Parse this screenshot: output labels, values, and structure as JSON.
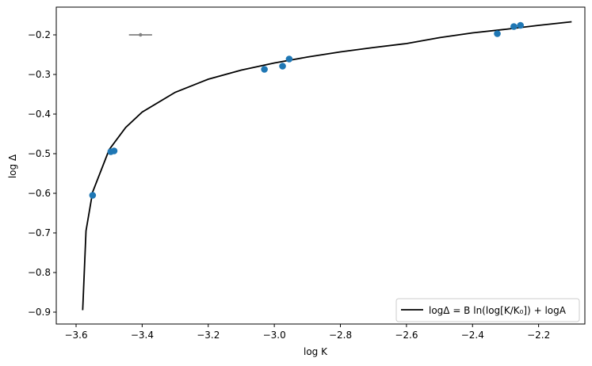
{
  "chart_data": {
    "type": "scatter",
    "xlabel": "log K",
    "ylabel": "log Δ",
    "xlim": [
      -3.66,
      -2.06
    ],
    "ylim": [
      -0.93,
      -0.13
    ],
    "xticks": [
      -3.6,
      -3.4,
      -3.2,
      -3.0,
      -2.8,
      -2.6,
      -2.4,
      -2.2
    ],
    "yticks": [
      -0.2,
      -0.3,
      -0.4,
      -0.5,
      -0.6,
      -0.7,
      -0.8,
      -0.9
    ],
    "xtick_labels": [
      "−3.6",
      "−3.4",
      "−3.2",
      "−3.0",
      "−2.8",
      "−2.6",
      "−2.4",
      "−2.2"
    ],
    "ytick_labels": [
      "−0.2",
      "−0.3",
      "−0.4",
      "−0.5",
      "−0.6",
      "−0.7",
      "−0.8",
      "−0.9"
    ],
    "grid": false,
    "legend_position": "lower-right",
    "colors": {
      "points": "#1f77b4",
      "fit": "#000000",
      "errorbar": "#808080"
    },
    "points": [
      {
        "x": -3.55,
        "y": -0.605
      },
      {
        "x": -3.495,
        "y": -0.495
      },
      {
        "x": -3.485,
        "y": -0.493
      },
      {
        "x": -3.03,
        "y": -0.287
      },
      {
        "x": -2.975,
        "y": -0.279
      },
      {
        "x": -2.955,
        "y": -0.261
      },
      {
        "x": -2.325,
        "y": -0.197
      },
      {
        "x": -2.275,
        "y": -0.179
      },
      {
        "x": -2.255,
        "y": -0.176
      }
    ],
    "errorbar_sample": {
      "x": -3.405,
      "y": -0.2,
      "xerr": 0.035
    },
    "fit": {
      "legend": "logΔ = B ln(log[K/K₀]) + logA",
      "x": [
        -3.58,
        -3.57,
        -3.55,
        -3.5,
        -3.45,
        -3.4,
        -3.3,
        -3.2,
        -3.1,
        -3.0,
        -2.9,
        -2.8,
        -2.7,
        -2.6,
        -2.5,
        -2.4,
        -2.3,
        -2.2,
        -2.1
      ],
      "y": [
        -0.895,
        -0.695,
        -0.597,
        -0.49,
        -0.434,
        -0.395,
        -0.345,
        -0.312,
        -0.289,
        -0.271,
        -0.256,
        -0.243,
        -0.232,
        -0.222,
        -0.207,
        -0.195,
        -0.186,
        -0.176,
        -0.167
      ]
    }
  }
}
